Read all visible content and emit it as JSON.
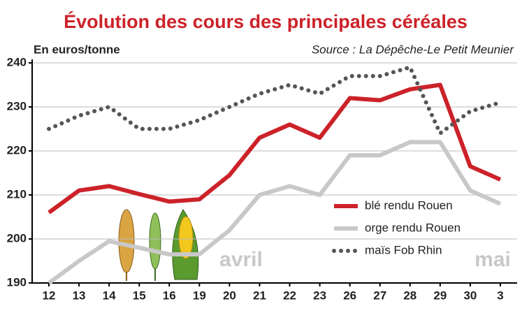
{
  "chart_data": {
    "type": "line",
    "title": "Évolution des cours des principales céréales",
    "y_label": "En euros/tonne",
    "source": "Source : La Dépêche-Le Petit Meunier",
    "categories": [
      "12",
      "13",
      "14",
      "15",
      "16",
      "19",
      "20",
      "21",
      "22",
      "23",
      "26",
      "27",
      "28",
      "29",
      "30",
      "3"
    ],
    "annotations": [
      "avril",
      "mai"
    ],
    "series": [
      {
        "name": "blé rendu Rouen",
        "color": "#cc2229",
        "style": "solid",
        "values": [
          206,
          211,
          212,
          210.2,
          208.5,
          209,
          214.5,
          223,
          226,
          223,
          232,
          231.5,
          234,
          235,
          216.5,
          213.5
        ]
      },
      {
        "name": "orge rendu Rouen",
        "color": "#c8c8c8",
        "style": "solid",
        "values": [
          190,
          195,
          199.5,
          198,
          196.5,
          196.5,
          202,
          210,
          212,
          210,
          219,
          219,
          222,
          222,
          211,
          208
        ]
      },
      {
        "name": "maïs Fob Rhin",
        "color": "#555555",
        "style": "dotted",
        "values": [
          225,
          228,
          230,
          225,
          225,
          227,
          230,
          233,
          235,
          233,
          237,
          237,
          239,
          224,
          229,
          231
        ]
      }
    ],
    "ylim": [
      190,
      240
    ],
    "yticks": [
      190,
      200,
      210,
      220,
      230,
      240
    ],
    "grid": true
  }
}
